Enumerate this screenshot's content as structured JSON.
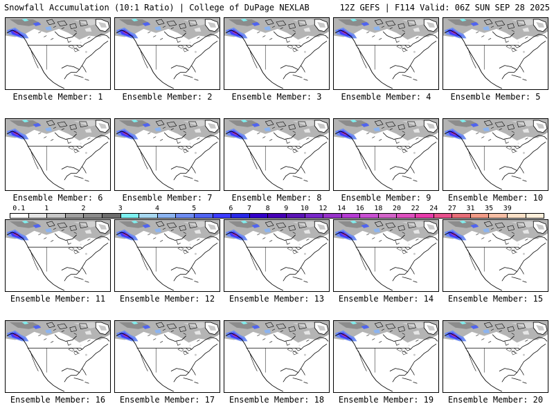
{
  "header": {
    "title_left": "Snowfall Accumulation (10:1 Ratio) | College of DuPage NEXLAB",
    "title_right": "12Z GEFS | F114 Valid: 06Z SUN SEP 28 2025"
  },
  "panels": [
    {
      "label": "Ensemble Member: 1"
    },
    {
      "label": "Ensemble Member: 2"
    },
    {
      "label": "Ensemble Member: 3"
    },
    {
      "label": "Ensemble Member: 4"
    },
    {
      "label": "Ensemble Member: 5"
    },
    {
      "label": "Ensemble Member: 6"
    },
    {
      "label": "Ensemble Member: 7"
    },
    {
      "label": "Ensemble Member: 8"
    },
    {
      "label": "Ensemble Member: 9"
    },
    {
      "label": "Ensemble Member: 10"
    },
    {
      "label": "Ensemble Member: 11"
    },
    {
      "label": "Ensemble Member: 12"
    },
    {
      "label": "Ensemble Member: 13"
    },
    {
      "label": "Ensemble Member: 14"
    },
    {
      "label": "Ensemble Member: 15"
    },
    {
      "label": "Ensemble Member: 16"
    },
    {
      "label": "Ensemble Member: 17"
    },
    {
      "label": "Ensemble Member: 18"
    },
    {
      "label": "Ensemble Member: 19"
    },
    {
      "label": "Ensemble Member: 20"
    }
  ],
  "colorbar": {
    "labels": [
      "0.1",
      "1",
      "2",
      "3",
      "4",
      "5",
      "6",
      "7",
      "8",
      "9",
      "10",
      "12",
      "14",
      "16",
      "18",
      "20",
      "22",
      "24",
      "27",
      "31",
      "35",
      "39"
    ],
    "colors": [
      "#ffffff",
      "#e6e6e6",
      "#c8c8c8",
      "#a0a0a0",
      "#8c8c8c",
      "#6e6e6e",
      "#7ff0f0",
      "#a8d8f0",
      "#8cb4f0",
      "#6e8cf0",
      "#5064f0",
      "#3c3cff",
      "#2828e6",
      "#3200c8",
      "#4600b4",
      "#5a14b4",
      "#7828c8",
      "#9632c8",
      "#b43cd2",
      "#c850d2",
      "#d264c8",
      "#dc50be",
      "#e63caa",
      "#e6508c",
      "#e66e78",
      "#f09b87",
      "#f5bea5",
      "#fae1c8",
      "#fff0dc"
    ]
  }
}
